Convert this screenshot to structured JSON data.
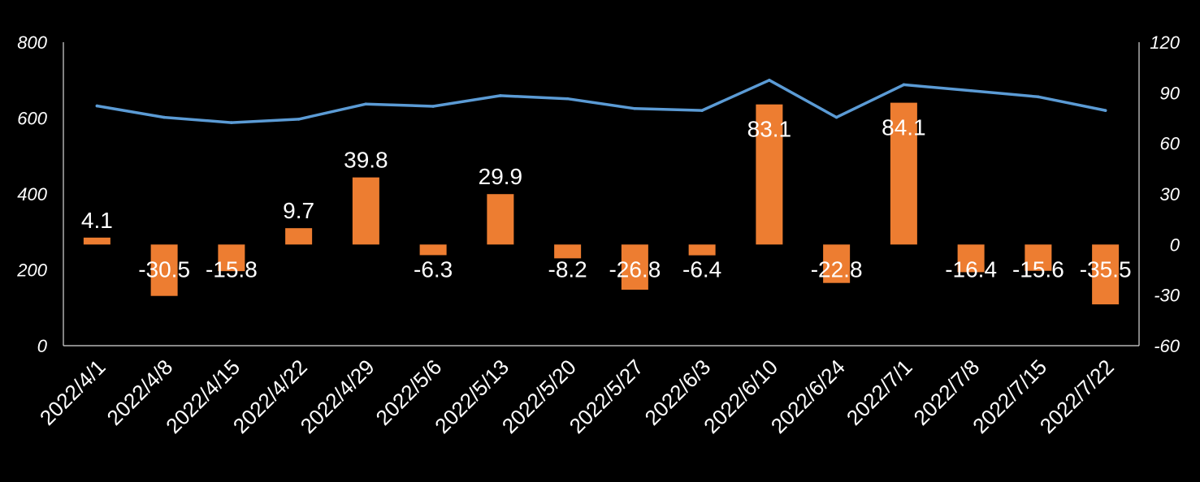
{
  "chart_data": {
    "type": "bar",
    "categories": [
      "2022/4/1",
      "2022/4/8",
      "2022/4/15",
      "2022/4/22",
      "2022/4/29",
      "2022/5/6",
      "2022/5/13",
      "2022/5/20",
      "2022/5/27",
      "2022/6/3",
      "2022/6/10",
      "2022/6/24",
      "2022/7/1",
      "2022/7/8",
      "2022/7/15",
      "2022/7/22"
    ],
    "series": [
      {
        "type": "line",
        "axis": "left",
        "color": "#5b9bd5",
        "values": [
          632,
          602,
          588,
          597,
          637,
          631,
          659,
          651,
          625,
          620,
          700,
          602,
          688,
          672,
          656,
          620
        ]
      },
      {
        "type": "bar",
        "axis": "right",
        "color": "#ed7d31",
        "values": [
          4.1,
          -30.5,
          -15.8,
          9.7,
          39.8,
          -6.3,
          29.9,
          -8.2,
          -26.8,
          -6.4,
          83.1,
          -22.8,
          84.1,
          -16.4,
          -15.6,
          -35.5
        ],
        "labels": [
          "4.1",
          "-30.5",
          "-15.8",
          "9.7",
          "39.8",
          "-6.3",
          "29.9",
          "-8.2",
          "-26.8",
          "-6.4",
          "83.1",
          "-22.8",
          "84.1",
          "-16.4",
          "-15.6",
          "-35.5"
        ]
      }
    ],
    "y_left": {
      "ylim": [
        0,
        800
      ],
      "ticks": [
        "0",
        "200",
        "400",
        "600",
        "800"
      ]
    },
    "y_right": {
      "ylim": [
        -60,
        120
      ],
      "ticks": [
        "-60",
        "-30",
        "0",
        "30",
        "60",
        "90",
        "120"
      ]
    },
    "grid": false,
    "legend": "none",
    "axis_color": "#d9d9d9",
    "background": "#000000"
  }
}
